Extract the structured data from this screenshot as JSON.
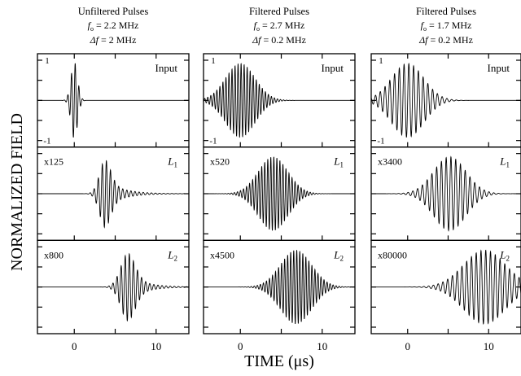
{
  "figure": {
    "ylabel": "NORMALIZED FIELD",
    "xlabel_main": "TIME (",
    "xlabel_unit": "μs",
    "xlabel_close": ")",
    "colors": {
      "ink": "#000000",
      "background": "#ffffff"
    }
  },
  "chart_data": [
    {
      "type": "line",
      "column_title": "Unfiltered Pulses",
      "param_f0": "f",
      "param_f0_sub": "o",
      "param_f0_val": " = 2.2 MHz",
      "param_df": "Δf",
      "param_df_val": " = 2 MHz",
      "xlim": [
        -4.5,
        14
      ],
      "ylim": [
        -1,
        1
      ],
      "xticks": [
        0,
        10
      ],
      "xtick_labels": [
        "0",
        "10"
      ],
      "panels": [
        {
          "label": "Input",
          "label_sub": "",
          "scale": "",
          "center_us": 0.0,
          "width_us": 0.4,
          "freq_mhz": 2.2,
          "amp": 0.96,
          "tail": 0
        },
        {
          "label": "L",
          "label_sub": "1",
          "scale": "x125",
          "center_us": 3.8,
          "width_us": 0.7,
          "freq_mhz": 2.0,
          "amp": 0.85,
          "tail": 0.4
        },
        {
          "label": "L",
          "label_sub": "2",
          "scale": "x800",
          "center_us": 6.6,
          "width_us": 0.9,
          "freq_mhz": 2.0,
          "amp": 0.85,
          "tail": 0.35
        }
      ]
    },
    {
      "type": "line",
      "column_title": "Filtered Pulses",
      "param_f0": "f",
      "param_f0_sub": "o",
      "param_f0_val": " = 2.7 MHz",
      "param_df": "Δf",
      "param_df_val": " = 0.2 MHz",
      "xlim": [
        -4.5,
        14
      ],
      "ylim": [
        -1,
        1
      ],
      "xticks": [
        0,
        10
      ],
      "xtick_labels": [
        "0",
        "10"
      ],
      "panels": [
        {
          "label": "Input",
          "label_sub": "",
          "scale": "",
          "center_us": 0.0,
          "width_us": 1.8,
          "freq_mhz": 2.7,
          "amp": 0.92,
          "tail": 0
        },
        {
          "label": "L",
          "label_sub": "1",
          "scale": "x520",
          "center_us": 4.0,
          "width_us": 1.8,
          "freq_mhz": 2.7,
          "amp": 0.92,
          "tail": 0
        },
        {
          "label": "L",
          "label_sub": "2",
          "scale": "x4500",
          "center_us": 6.8,
          "width_us": 1.9,
          "freq_mhz": 2.7,
          "amp": 0.92,
          "tail": 0
        }
      ]
    },
    {
      "type": "line",
      "column_title": "Filtered Pulses",
      "param_f0": "f",
      "param_f0_sub": "o",
      "param_f0_val": " = 1.7 MHz",
      "param_df": "Δf",
      "param_df_val": " = 0.2 MHz",
      "xlim": [
        -4.5,
        14
      ],
      "ylim": [
        -1,
        1
      ],
      "xticks": [
        0,
        10
      ],
      "xtick_labels": [
        "0",
        "10"
      ],
      "panels": [
        {
          "label": "Input",
          "label_sub": "",
          "scale": "",
          "center_us": 0.0,
          "width_us": 2.0,
          "freq_mhz": 1.7,
          "amp": 0.92,
          "tail": 0
        },
        {
          "label": "L",
          "label_sub": "1",
          "scale": "x3400",
          "center_us": 5.2,
          "width_us": 2.0,
          "freq_mhz": 1.7,
          "amp": 0.92,
          "tail": 0
        },
        {
          "label": "L",
          "label_sub": "2",
          "scale": "x80000",
          "center_us": 9.5,
          "width_us": 2.6,
          "freq_mhz": 1.7,
          "amp": 0.92,
          "tail": 0
        }
      ]
    }
  ]
}
